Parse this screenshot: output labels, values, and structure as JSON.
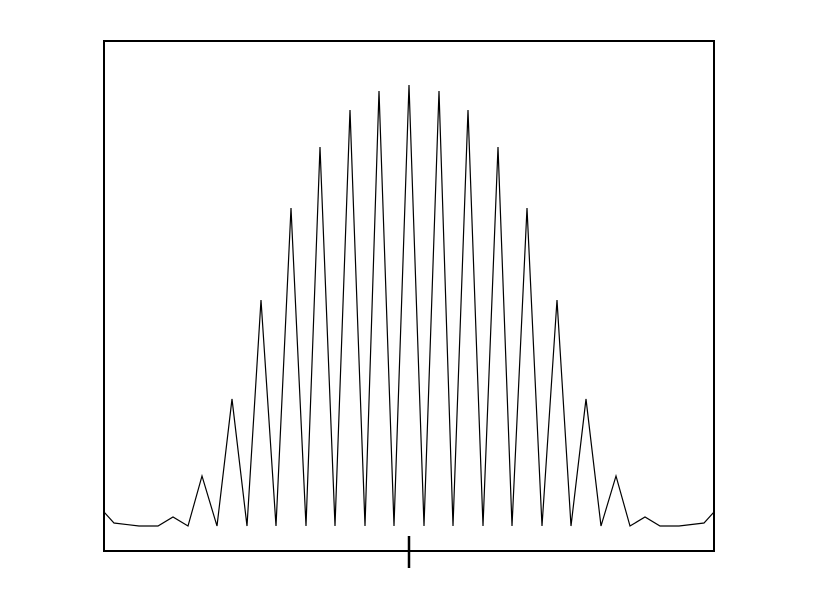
{
  "chart_data": {
    "type": "line",
    "color": "#000000",
    "x": [
      -305,
      -295,
      -270,
      -251,
      -236,
      -221,
      -207,
      -192,
      -177,
      -162,
      -148,
      -133,
      -118,
      -103,
      -89,
      -74,
      -59,
      -44,
      -30,
      -15,
      0,
      15,
      30,
      44,
      59,
      74,
      89,
      103,
      118,
      133,
      148,
      162,
      177,
      192,
      207,
      221,
      236,
      251,
      270,
      295,
      305
    ],
    "values": [
      39,
      28,
      25,
      25,
      34,
      25,
      75,
      25,
      152,
      25,
      251,
      25,
      343,
      25,
      404,
      25,
      441,
      25,
      460,
      25,
      466,
      25,
      460,
      25,
      441,
      25,
      404,
      25,
      343,
      25,
      251,
      25,
      152,
      25,
      75,
      25,
      34,
      25,
      25,
      28,
      39
    ],
    "xlim": [
      -305,
      305
    ],
    "ylim": [
      0,
      510
    ],
    "xticks": [
      0
    ]
  }
}
